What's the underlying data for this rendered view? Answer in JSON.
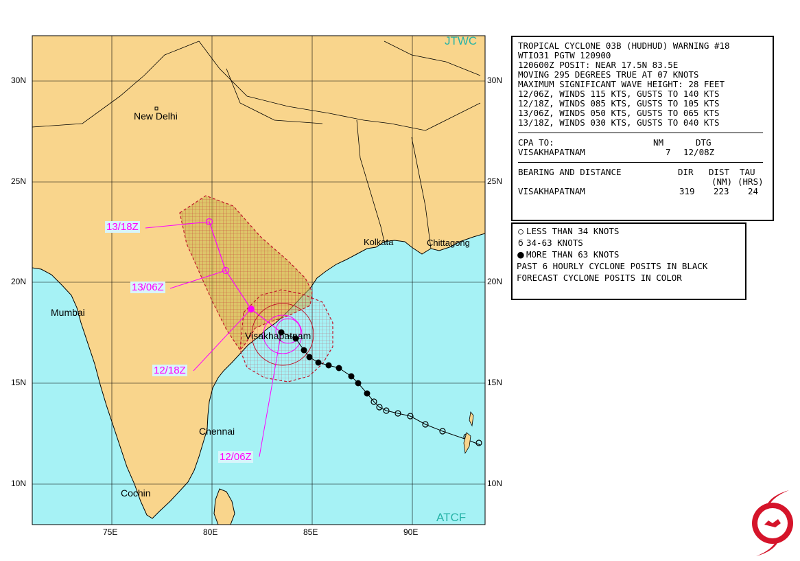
{
  "map": {
    "watermark_top": "JTWC",
    "watermark_bottom": "ATCF",
    "lat_labels": [
      "30N",
      "25N",
      "20N",
      "15N",
      "10N"
    ],
    "lon_labels": [
      "75E",
      "80E",
      "85E",
      "90E"
    ],
    "cities": {
      "new_delhi": "New Delhi",
      "mumbai": "Mumbai",
      "kolkata": "Kolkata",
      "chittagong": "Chittagong",
      "visakhapatnam": "Visakhapatnam",
      "chennai": "Chennai",
      "cochin": "Cochin"
    },
    "forecast_labels": [
      "13/18Z",
      "13/06Z",
      "12/18Z",
      "12/06Z"
    ],
    "colors": {
      "land": "#f9d58c",
      "water": "#a6f2f5",
      "forecast_track": "#ff00ff",
      "danger_area": "#c0152a",
      "past_track": "#000000"
    }
  },
  "warning": {
    "lines": [
      "TROPICAL CYCLONE 03B (HUDHUD) WARNING #18",
      "WTIO31 PGTW 120900",
      "120600Z POSIT: NEAR 17.5N 83.5E",
      "MOVING 295 DEGREES TRUE AT 07 KNOTS",
      "MAXIMUM SIGNIFICANT WAVE HEIGHT: 28 FEET",
      "12/06Z, WINDS 115 KTS, GUSTS TO 140 KTS",
      "12/18Z, WINDS 085 KTS, GUSTS TO 105 KTS",
      "13/06Z, WINDS 050 KTS, GUSTS TO 065 KTS",
      "13/18Z, WINDS 030 KTS, GUSTS TO 040 KTS"
    ],
    "cpa": {
      "label": "CPA TO:",
      "nm_header": "NM",
      "dtg_header": "DTG",
      "place": "VISAKHAPATNAM",
      "nm": "7",
      "dtg": "12/08Z"
    },
    "bearing": {
      "label": "BEARING AND DISTANCE",
      "dir_header": "DIR",
      "dist_header": "DIST",
      "dist_unit": "(NM)",
      "tau_header": "TAU",
      "tau_unit": "(HRS)",
      "place": "VISAKHAPATNAM",
      "dir": "319",
      "dist": "223",
      "tau": "24"
    }
  },
  "legend": {
    "items": [
      "LESS THAN 34 KNOTS",
      "34-63 KNOTS",
      "MORE THAN 63 KNOTS",
      "PAST 6 HOURLY CYCLONE POSITS IN BLACK",
      "FORECAST CYCLONE POSITS IN COLOR"
    ]
  }
}
